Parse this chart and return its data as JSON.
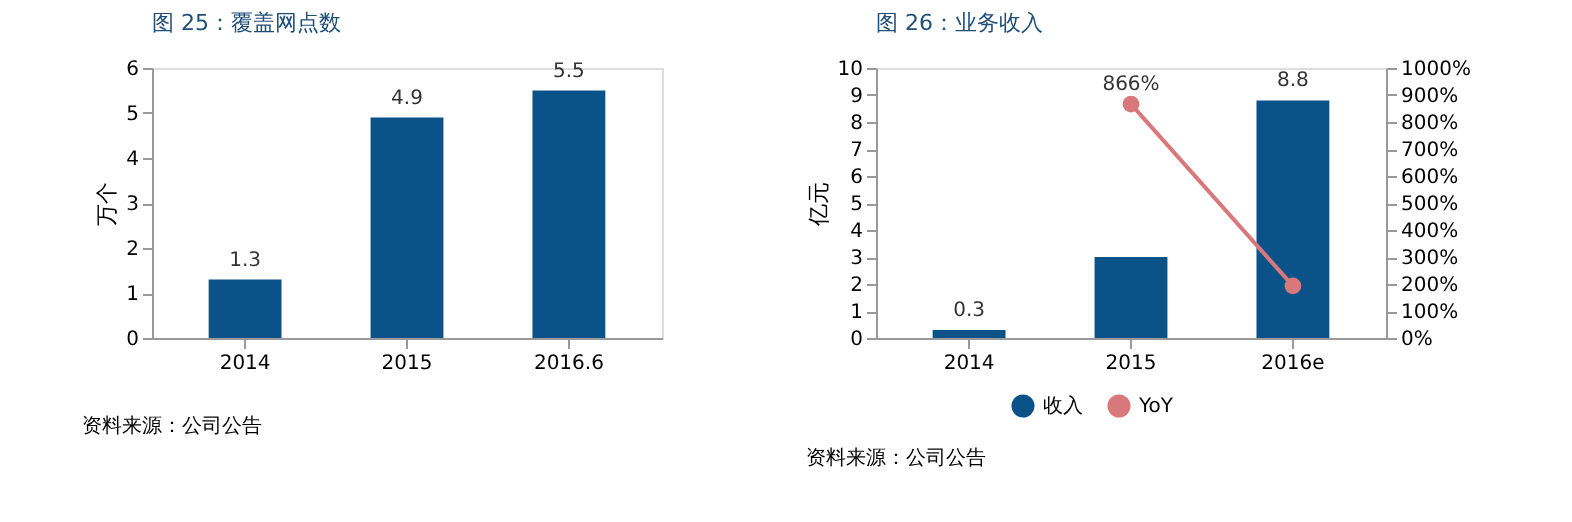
{
  "chart_data": [
    {
      "type": "bar",
      "title": "图 25：覆盖网点数",
      "ylabel": "万个",
      "categories": [
        "2014",
        "2015",
        "2016.6"
      ],
      "values": [
        1.3,
        4.9,
        5.5
      ],
      "color": "#0b5289",
      "ylim": [
        0,
        6
      ],
      "yticks": [
        0,
        1,
        2,
        3,
        4,
        5,
        6
      ],
      "data_labels": true,
      "grid": false,
      "legend": false,
      "annotations": [
        "资料来源：公司公告"
      ]
    },
    {
      "type": "bar",
      "title": "图 26：业务收入",
      "ylabel": "亿元",
      "categories": [
        "2014",
        "2015",
        "2016e"
      ],
      "series": [
        {
          "name": "收入",
          "color": "#0b5289",
          "values": [
            0.3,
            3.0,
            8.8
          ],
          "value_labels": [
            "0.3",
            null,
            "8.8"
          ]
        },
        {
          "name": "YoY",
          "type": "line",
          "axis": "y2",
          "color": "#d9787a",
          "values": [
            null,
            866,
            193
          ],
          "value_labels": [
            null,
            "866%",
            null
          ]
        }
      ],
      "marker": "circle",
      "ylim": [
        0,
        10
      ],
      "yticks": [
        0,
        1,
        2,
        3,
        4,
        5,
        6,
        7,
        8,
        9,
        10
      ],
      "y2lim": [
        0,
        1000
      ],
      "y2ticks": [
        {
          "value": 0,
          "label": "0%"
        },
        {
          "value": 100,
          "label": "100%"
        },
        {
          "value": 200,
          "label": "200%"
        },
        {
          "value": 300,
          "label": "300%"
        },
        {
          "value": 400,
          "label": "400%"
        },
        {
          "value": 500,
          "label": "500%"
        },
        {
          "value": 600,
          "label": "600%"
        },
        {
          "value": 700,
          "label": "700%"
        },
        {
          "value": 800,
          "label": "800%"
        },
        {
          "value": 900,
          "label": "900%"
        },
        {
          "value": 1000,
          "label": "1000%"
        }
      ],
      "grid": false,
      "legend": "bottom",
      "annotations": [
        "资料来源：公司公告"
      ]
    }
  ]
}
